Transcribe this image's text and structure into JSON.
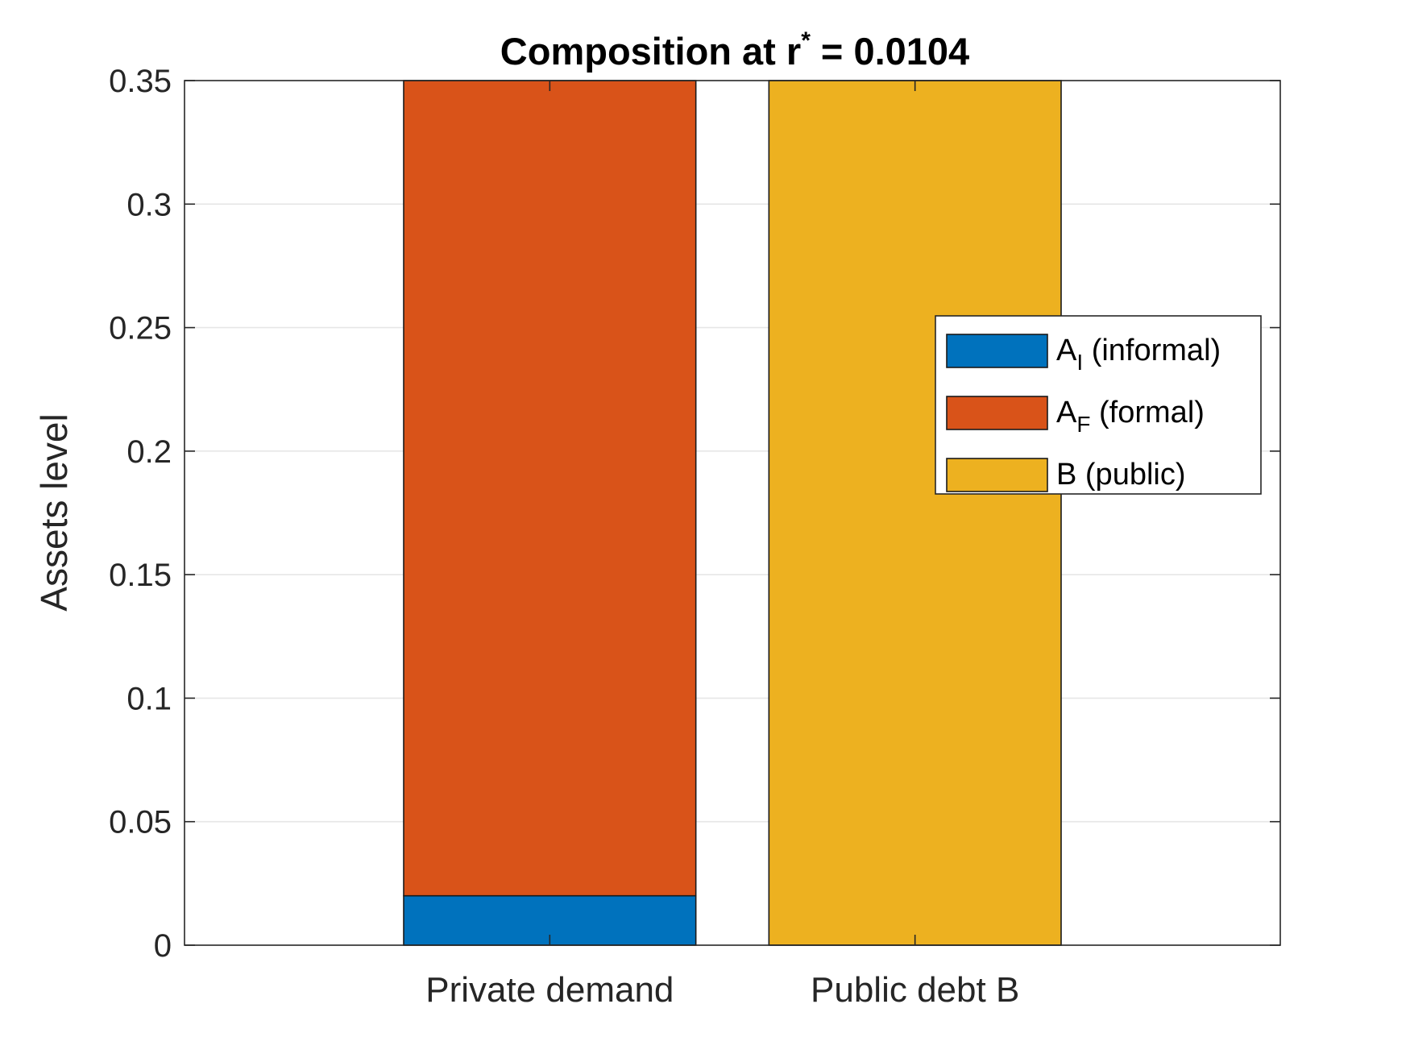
{
  "chart_data": {
    "type": "bar",
    "stacked": true,
    "title": {
      "main": "Composition at r",
      "superscript": "*",
      "rest": " = 0.0104"
    },
    "ylabel": "Assets level",
    "xlabel": "",
    "ylim": [
      0,
      0.35
    ],
    "yticks": [
      "0",
      "0.05",
      "0.1",
      "0.15",
      "0.2",
      "0.25",
      "0.3",
      "0.35"
    ],
    "ytick_values": [
      0,
      0.05,
      0.1,
      0.15,
      0.2,
      0.25,
      0.3,
      0.35
    ],
    "grid": true,
    "categories": [
      "Private demand",
      "Public debt B"
    ],
    "series": [
      {
        "name": "A_I (informal)",
        "label_base": "A",
        "label_sub": "I",
        "label_rest": " (informal)",
        "color": "#0072BD",
        "values": [
          0.02,
          0
        ]
      },
      {
        "name": "A_F (formal)",
        "label_base": "A",
        "label_sub": "F",
        "label_rest": " (formal)",
        "color": "#D95319",
        "values": [
          0.33,
          0
        ]
      },
      {
        "name": "B (public)",
        "label_base": "B (public)",
        "label_sub": "",
        "label_rest": "",
        "color": "#EDB120",
        "values": [
          0,
          0.35
        ]
      }
    ],
    "legend_position": "right"
  }
}
